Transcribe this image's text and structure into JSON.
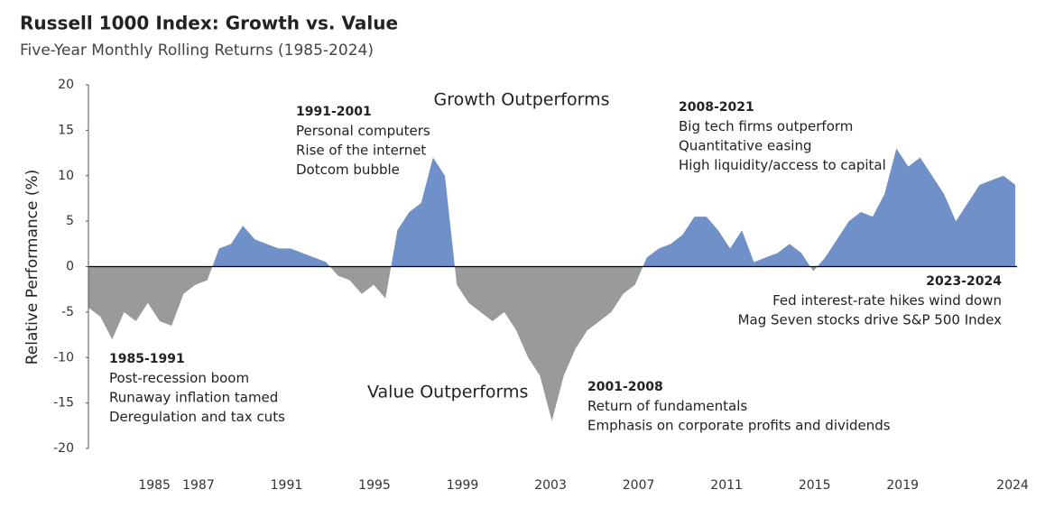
{
  "chart_data": {
    "type": "area",
    "title": "Russell 1000 Index: Growth vs. Value",
    "subtitle": "Five-Year Monthly Rolling Returns (1985-2024)",
    "y_label": "Relative Performance (%)",
    "x": [
      1982.0,
      1982.54,
      1983.08,
      1983.62,
      1984.16,
      1984.7,
      1985.24,
      1985.78,
      1986.32,
      1986.86,
      1987.4,
      1987.94,
      1988.48,
      1989.02,
      1989.56,
      1990.1,
      1990.64,
      1991.18,
      1991.72,
      1992.26,
      1992.8,
      1993.34,
      1993.88,
      1994.42,
      1994.96,
      1995.5,
      1996.04,
      1996.58,
      1997.12,
      1997.66,
      1998.2,
      1998.74,
      1999.28,
      1999.82,
      2000.36,
      2000.9,
      2001.44,
      2001.98,
      2002.52,
      2003.06,
      2003.6,
      2004.14,
      2004.68,
      2005.22,
      2005.76,
      2006.3,
      2006.84,
      2007.38,
      2007.92,
      2008.46,
      2009.0,
      2009.54,
      2010.08,
      2010.62,
      2011.16,
      2011.7,
      2012.24,
      2012.78,
      2013.32,
      2013.86,
      2014.4,
      2014.94,
      2015.48,
      2016.02,
      2016.56,
      2017.1,
      2017.64,
      2018.18,
      2018.72,
      2019.26,
      2019.8,
      2020.34,
      2020.88,
      2021.42,
      2021.96,
      2022.5,
      2023.04,
      2023.58,
      2024.12
    ],
    "values": [
      -4.5,
      -5.5,
      -8,
      -5,
      -6,
      -4,
      -6,
      -6.5,
      -3,
      -2,
      -1.5,
      2,
      2.5,
      4.5,
      3,
      2.5,
      2,
      2,
      1.5,
      1,
      0.5,
      -1,
      -1.5,
      -3,
      -2,
      -3.5,
      4,
      6,
      7,
      12,
      10,
      -2,
      -4,
      -5,
      -6,
      -5,
      -7,
      -10,
      -12,
      -17,
      -12,
      -9,
      -7,
      -6,
      -5,
      -3,
      -2,
      1,
      2,
      2.5,
      3.5,
      5.5,
      5.5,
      4,
      2,
      4,
      0.5,
      1,
      1.5,
      2.5,
      1.5,
      -0.5,
      1,
      3,
      5,
      6,
      5.5,
      8,
      13,
      11,
      12,
      10,
      8,
      5,
      7,
      9,
      9.5,
      10,
      9
    ],
    "positive_color": "#7090c9",
    "negative_color": "#999a9c",
    "xlim": [
      1982,
      2024.2
    ],
    "xticks": [
      1985,
      1987,
      1991,
      1995,
      1999,
      2003,
      2007,
      2011,
      2015,
      2019,
      2024
    ],
    "ylim": [
      -20,
      20
    ],
    "yticks": [
      -20,
      -15,
      -10,
      -5,
      0,
      5,
      10,
      15,
      20
    ],
    "grid": false,
    "region_labels": [
      "Growth Outperforms",
      "Value Outperforms"
    ],
    "annotations": [
      {
        "title": "1985-1991",
        "lines": [
          "Post-recession boom",
          "Runaway inflation tamed",
          "Deregulation and tax cuts"
        ]
      },
      {
        "title": "1991-2001",
        "lines": [
          "Personal computers",
          "Rise of the internet",
          "Dotcom bubble"
        ]
      },
      {
        "title": "2001-2008",
        "lines": [
          "Return of fundamentals",
          "Emphasis on corporate profits and dividends"
        ]
      },
      {
        "title": "2008-2021",
        "lines": [
          "Big tech firms outperform",
          "Quantitative easing",
          "High liquidity/access to capital"
        ]
      },
      {
        "title": "2023-2024",
        "lines": [
          "Fed interest-rate hikes wind down",
          "Mag Seven stocks drive S&P 500 Index"
        ]
      }
    ]
  }
}
